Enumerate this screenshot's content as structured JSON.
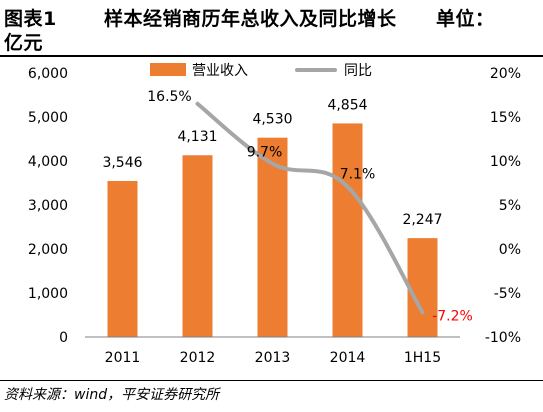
{
  "header": {
    "figure_no": "图表1",
    "title": "样本经销商历年总收入及同比增长",
    "unit_line1": "单位：",
    "unit_line2": "亿元"
  },
  "source": "资料来源：wind，平安证券研究所",
  "colors": {
    "bar": "#ED7D31",
    "line": "#A6A6A6",
    "negative_label": "#FF0000",
    "axis_text": "#000000",
    "rule": "#000000"
  },
  "chart_data": {
    "type": "bar",
    "categories": [
      "2011",
      "2012",
      "2013",
      "2014",
      "1H15"
    ],
    "series": [
      {
        "name": "营业收入",
        "type": "bar",
        "axis": "left",
        "values": [
          3546,
          4131,
          4530,
          4854,
          2247
        ],
        "labels": [
          "3,546",
          "4,131",
          "4,530",
          "4,854",
          "2,247"
        ]
      },
      {
        "name": "同比",
        "type": "line",
        "axis": "right",
        "points": [
          {
            "x": "2012",
            "y": 16.5
          },
          {
            "x": "2013",
            "y": 9.7
          },
          {
            "x": "2014",
            "y": 7.1
          },
          {
            "x": "1H15",
            "y": -7.2
          }
        ],
        "labels": [
          "16.5%",
          "9.7%",
          "7.1%",
          "-7.2%"
        ]
      }
    ],
    "y_left": {
      "min": 0,
      "max": 6000,
      "ticks": [
        0,
        1000,
        2000,
        3000,
        4000,
        5000,
        6000
      ],
      "tick_labels": [
        "0",
        "1,000",
        "2,000",
        "3,000",
        "4,000",
        "5,000",
        "6,000"
      ]
    },
    "y_right": {
      "min": -10,
      "max": 20,
      "ticks": [
        -10,
        -5,
        0,
        5,
        10,
        15,
        20
      ],
      "tick_labels": [
        "-10%",
        "-5%",
        "0%",
        "5%",
        "10%",
        "15%",
        "20%"
      ]
    },
    "legend_position": "top-center",
    "grid": false
  }
}
